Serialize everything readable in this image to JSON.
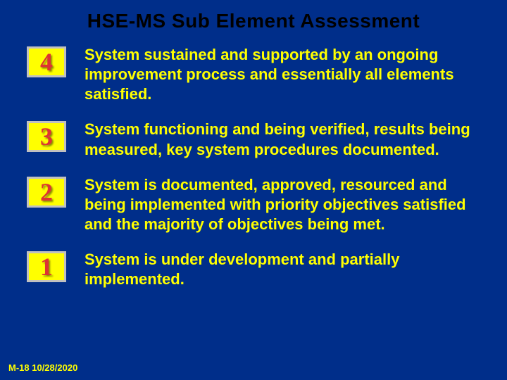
{
  "colors": {
    "background": "#002e8a",
    "title_color": "#000000",
    "desc_color": "#ffff00",
    "footer_color": "#ffff00",
    "num_border": "#c0c0c0",
    "num_bg": "#ffff00",
    "num_text": "#dd3333"
  },
  "typography": {
    "title_fontsize": 28,
    "num_fontsize": 36,
    "desc_fontsize": 22,
    "footer_fontsize": 13,
    "num_border_width": 3
  },
  "title": "HSE-MS Sub Element Assessment",
  "levels": [
    {
      "num": "4",
      "desc": "System sustained and supported by an ongoing improvement process and essentially all elements satisfied."
    },
    {
      "num": "3",
      "desc": "System functioning and being verified, results being measured, key system procedures documented."
    },
    {
      "num": "2",
      "desc": "System is documented, approved, resourced and being implemented with priority objectives satisfied and the majority of objectives being met."
    },
    {
      "num": "1",
      "desc": "System is under development and partially implemented."
    }
  ],
  "footer": "M-18 10/28/2020"
}
